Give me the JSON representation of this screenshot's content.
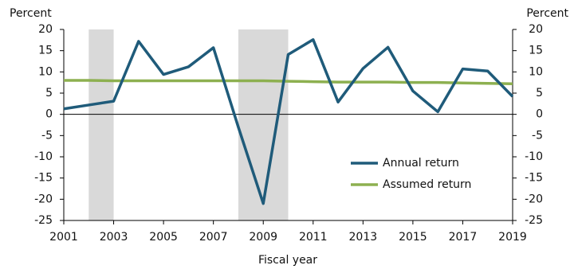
{
  "chart_data": {
    "type": "line",
    "x_label": "Fiscal year",
    "y_label": "Percent",
    "y2_label": "Percent",
    "x": [
      2001,
      2002,
      2003,
      2004,
      2005,
      2006,
      2007,
      2008,
      2009,
      2010,
      2011,
      2012,
      2013,
      2014,
      2015,
      2016,
      2017,
      2018,
      2019
    ],
    "series": [
      {
        "name": "Annual return",
        "color": "#1f5b7a",
        "values": [
          1.3,
          2.2,
          3.1,
          17.2,
          9.4,
          11.2,
          15.7,
          -3,
          -21,
          14.1,
          17.6,
          2.9,
          10.8,
          15.8,
          5.5,
          0.6,
          10.7,
          10.2,
          4.2
        ]
      },
      {
        "name": "Assumed return",
        "color": "#8db050",
        "values": [
          8.0,
          8.0,
          7.9,
          7.9,
          7.9,
          7.9,
          7.9,
          7.9,
          7.9,
          7.8,
          7.7,
          7.6,
          7.6,
          7.6,
          7.5,
          7.5,
          7.4,
          7.3,
          7.2
        ]
      }
    ],
    "shaded_regions": [
      [
        2002,
        2003
      ],
      [
        2008,
        2010
      ]
    ],
    "shade_color": "#d9d9d9",
    "xlim": [
      2001,
      2019
    ],
    "xticks": [
      2001,
      2003,
      2005,
      2007,
      2009,
      2011,
      2013,
      2015,
      2017,
      2019
    ],
    "ylim": [
      -25,
      20
    ],
    "yticks": [
      -25,
      -20,
      -15,
      -10,
      -5,
      0,
      5,
      10,
      15,
      20
    ],
    "y2lim": [
      -25,
      20
    ],
    "y2ticks": [
      -25,
      -20,
      -15,
      -10,
      -5,
      0,
      5,
      10,
      15,
      20
    ],
    "grid": false,
    "legend": "lower right"
  }
}
